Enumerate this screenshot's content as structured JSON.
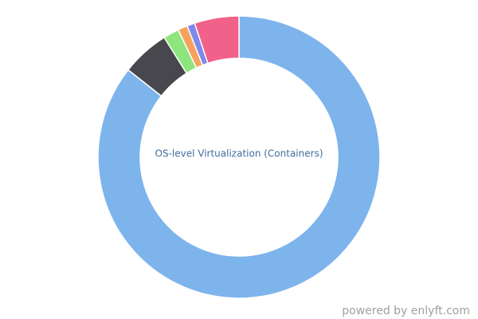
{
  "chart_data": {
    "type": "donut",
    "center_text": "OS-level Virtualization (Containers)",
    "categories": [
      null,
      null,
      null,
      null,
      null,
      null
    ],
    "values": [
      85.6,
      5.5,
      1.8,
      1.1,
      0.9,
      5.1
    ],
    "colors": [
      "#7eb4ec",
      "#47474d",
      "#8ee57e",
      "#f5a35c",
      "#8089ea",
      "#f2618a"
    ]
  },
  "credit": "powered by enlyft.com"
}
